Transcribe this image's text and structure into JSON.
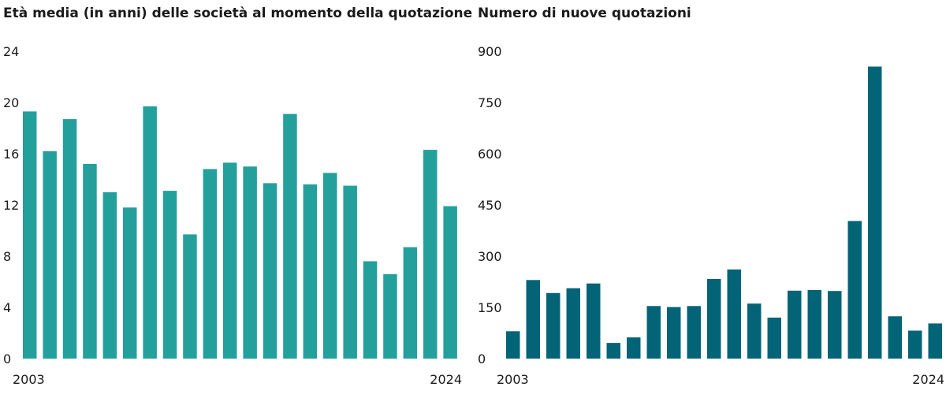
{
  "chart_data": [
    {
      "type": "bar",
      "title": "Età media (in anni) delle società al momento della quotazione",
      "x": [
        2003,
        2004,
        2005,
        2006,
        2007,
        2008,
        2009,
        2010,
        2011,
        2012,
        2013,
        2014,
        2015,
        2016,
        2017,
        2018,
        2019,
        2020,
        2021,
        2022,
        2023,
        2024
      ],
      "x_tick_labels": [
        "2003",
        "2024"
      ],
      "values": [
        19.3,
        16.2,
        18.7,
        15.2,
        13.0,
        11.8,
        19.7,
        13.1,
        9.7,
        14.8,
        15.3,
        15.0,
        13.7,
        19.1,
        13.6,
        14.5,
        13.5,
        7.6,
        6.6,
        8.7,
        16.3,
        11.9
      ],
      "ylim": [
        0,
        24
      ],
      "y_ticks": [
        0,
        4,
        8,
        12,
        16,
        20,
        24
      ],
      "color": "#23a09c",
      "grid": false
    },
    {
      "type": "bar",
      "title": "Numero di nuove quotazioni",
      "x": [
        2003,
        2004,
        2005,
        2006,
        2007,
        2008,
        2009,
        2010,
        2011,
        2012,
        2013,
        2014,
        2015,
        2016,
        2017,
        2018,
        2019,
        2020,
        2021,
        2022,
        2023,
        2024
      ],
      "x_tick_labels": [
        "2003",
        "2024"
      ],
      "values": [
        80,
        230,
        192,
        206,
        220,
        46,
        62,
        154,
        151,
        154,
        233,
        261,
        161,
        120,
        199,
        201,
        198,
        403,
        855,
        124,
        82,
        103
      ],
      "ylim": [
        0,
        900
      ],
      "y_ticks": [
        0,
        150,
        300,
        450,
        600,
        750,
        900
      ],
      "color": "#046477",
      "grid": false
    }
  ]
}
